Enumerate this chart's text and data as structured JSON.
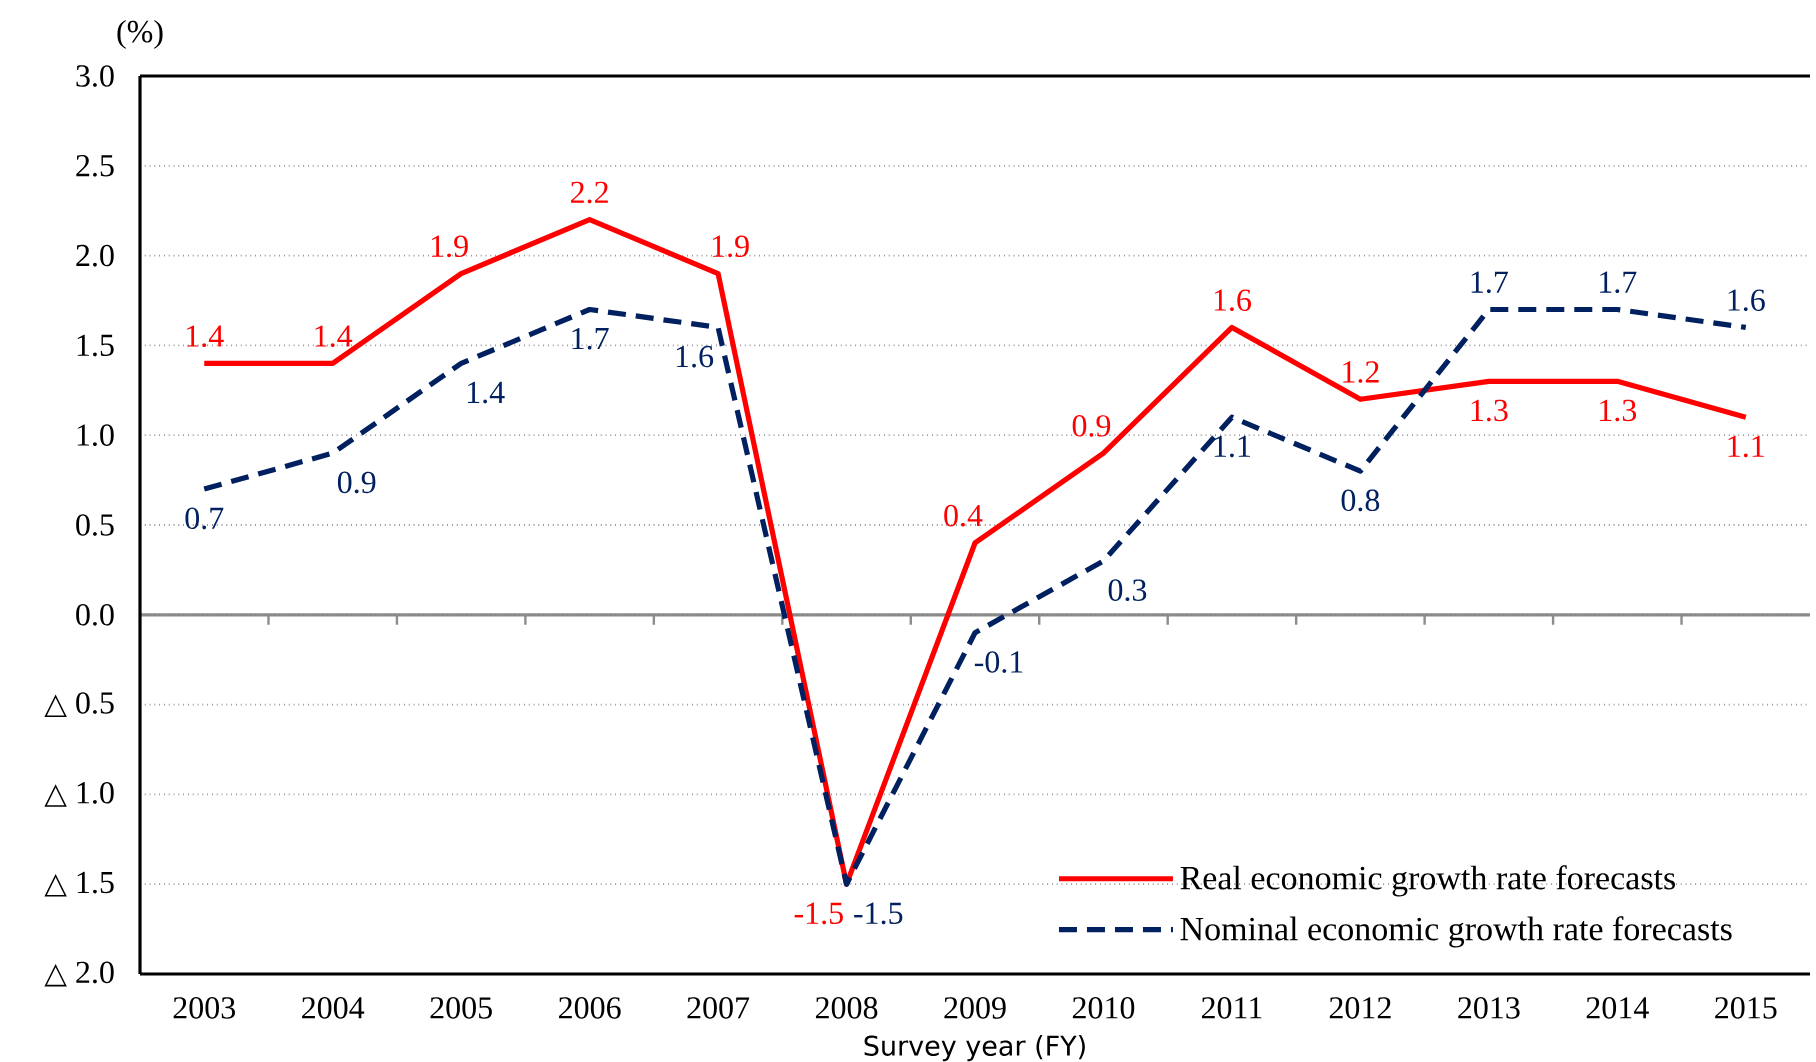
{
  "chart_data": {
    "type": "line",
    "xlabel": "Survey year (FY)",
    "ylabel": "(%)",
    "categories": [
      "2003",
      "2004",
      "2005",
      "2006",
      "2007",
      "2008",
      "2009",
      "2010",
      "2011",
      "2012",
      "2013",
      "2014",
      "2015"
    ],
    "series": [
      {
        "name": "Real economic growth rate forecasts",
        "color": "#ff0000",
        "line_style": "solid",
        "values": [
          1.4,
          1.4,
          1.9,
          2.2,
          1.9,
          -1.5,
          0.4,
          0.9,
          1.6,
          1.2,
          1.3,
          1.3,
          1.1
        ]
      },
      {
        "name": "Nominal economic growth rate forecasts",
        "color": "#002060",
        "line_style": "dashed",
        "values": [
          0.7,
          0.9,
          1.4,
          1.7,
          1.6,
          -1.5,
          -0.1,
          0.3,
          1.1,
          0.8,
          1.7,
          1.7,
          1.6
        ]
      }
    ],
    "ylim": [
      -2.0,
      3.0
    ],
    "yticks": [
      {
        "value": -2.0,
        "label": "△ 2.0"
      },
      {
        "value": -1.5,
        "label": "△ 1.5"
      },
      {
        "value": -1.0,
        "label": "△ 1.0"
      },
      {
        "value": -0.5,
        "label": "△ 0.5"
      },
      {
        "value": 0,
        "label": "0.0"
      },
      0.5,
      {
        "value": 1,
        "label": "1.0"
      },
      1.5,
      {
        "value": 2,
        "label": "2.0"
      },
      2.5,
      {
        "value": 3,
        "label": "3.0"
      }
    ],
    "grid": "y",
    "legend": "bottom right",
    "data_labels": true
  }
}
